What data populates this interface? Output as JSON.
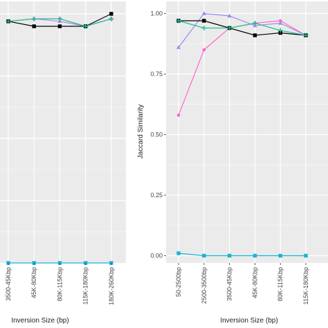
{
  "chart_data": [
    {
      "type": "line",
      "title": "",
      "xlabel": "Inversion Size (bp)",
      "ylabel": "",
      "ylim": [
        0,
        1.05
      ],
      "grid": true,
      "categories": [
        "3500-45Kbp",
        "45K-80Kbp",
        "80K-115Kbp",
        "115K-180Kbp",
        "180K-260Kbp"
      ],
      "series": [
        {
          "color": "#ff66cc",
          "marker": "circle",
          "values": [
            0.97,
            0.98,
            0.98,
            0.95,
            0.98
          ]
        },
        {
          "color": "#9a8cf0",
          "marker": "triangle",
          "values": [
            0.97,
            0.98,
            0.97,
            0.95,
            0.98
          ]
        },
        {
          "color": "#000000",
          "marker": "square",
          "values": [
            0.97,
            0.95,
            0.95,
            0.95,
            1.0
          ]
        },
        {
          "color": "#1fbf8f",
          "marker": "plus",
          "values": [
            0.97,
            0.98,
            0.98,
            0.95,
            0.98
          ]
        },
        {
          "color": "#1ab2d6",
          "marker": "square",
          "values": [
            0.0,
            0.0,
            0.0,
            0.0,
            0.0
          ]
        }
      ]
    },
    {
      "type": "line",
      "title": "",
      "xlabel": "Inversion Size (bp)",
      "ylabel": "Jaccard Similarity",
      "ylim": [
        -0.03,
        1.05
      ],
      "grid": true,
      "y_ticks": [
        "0.00",
        "0.25",
        "0.50",
        "0.75",
        "1.00"
      ],
      "categories": [
        "50-2500bp",
        "2500-3500bp",
        "3500-45Kbp",
        "45K-80Kbp",
        "80K-115Kbp",
        "115K-180Kbp"
      ],
      "series": [
        {
          "color": "#ff66cc",
          "marker": "circle",
          "values": [
            0.58,
            0.85,
            0.94,
            0.96,
            0.97,
            0.91
          ]
        },
        {
          "color": "#9a8cf0",
          "marker": "triangle",
          "values": [
            0.86,
            1.0,
            0.99,
            0.95,
            0.96,
            0.91
          ]
        },
        {
          "color": "#000000",
          "marker": "square",
          "values": [
            0.97,
            0.97,
            0.94,
            0.91,
            0.92,
            0.91
          ]
        },
        {
          "color": "#1fbf8f",
          "marker": "plus",
          "values": [
            0.97,
            0.94,
            0.94,
            0.96,
            0.93,
            0.91
          ]
        },
        {
          "color": "#1ab2d6",
          "marker": "square",
          "values": [
            0.01,
            0.0,
            0.0,
            0.0,
            0.0,
            0.0
          ]
        }
      ]
    }
  ]
}
